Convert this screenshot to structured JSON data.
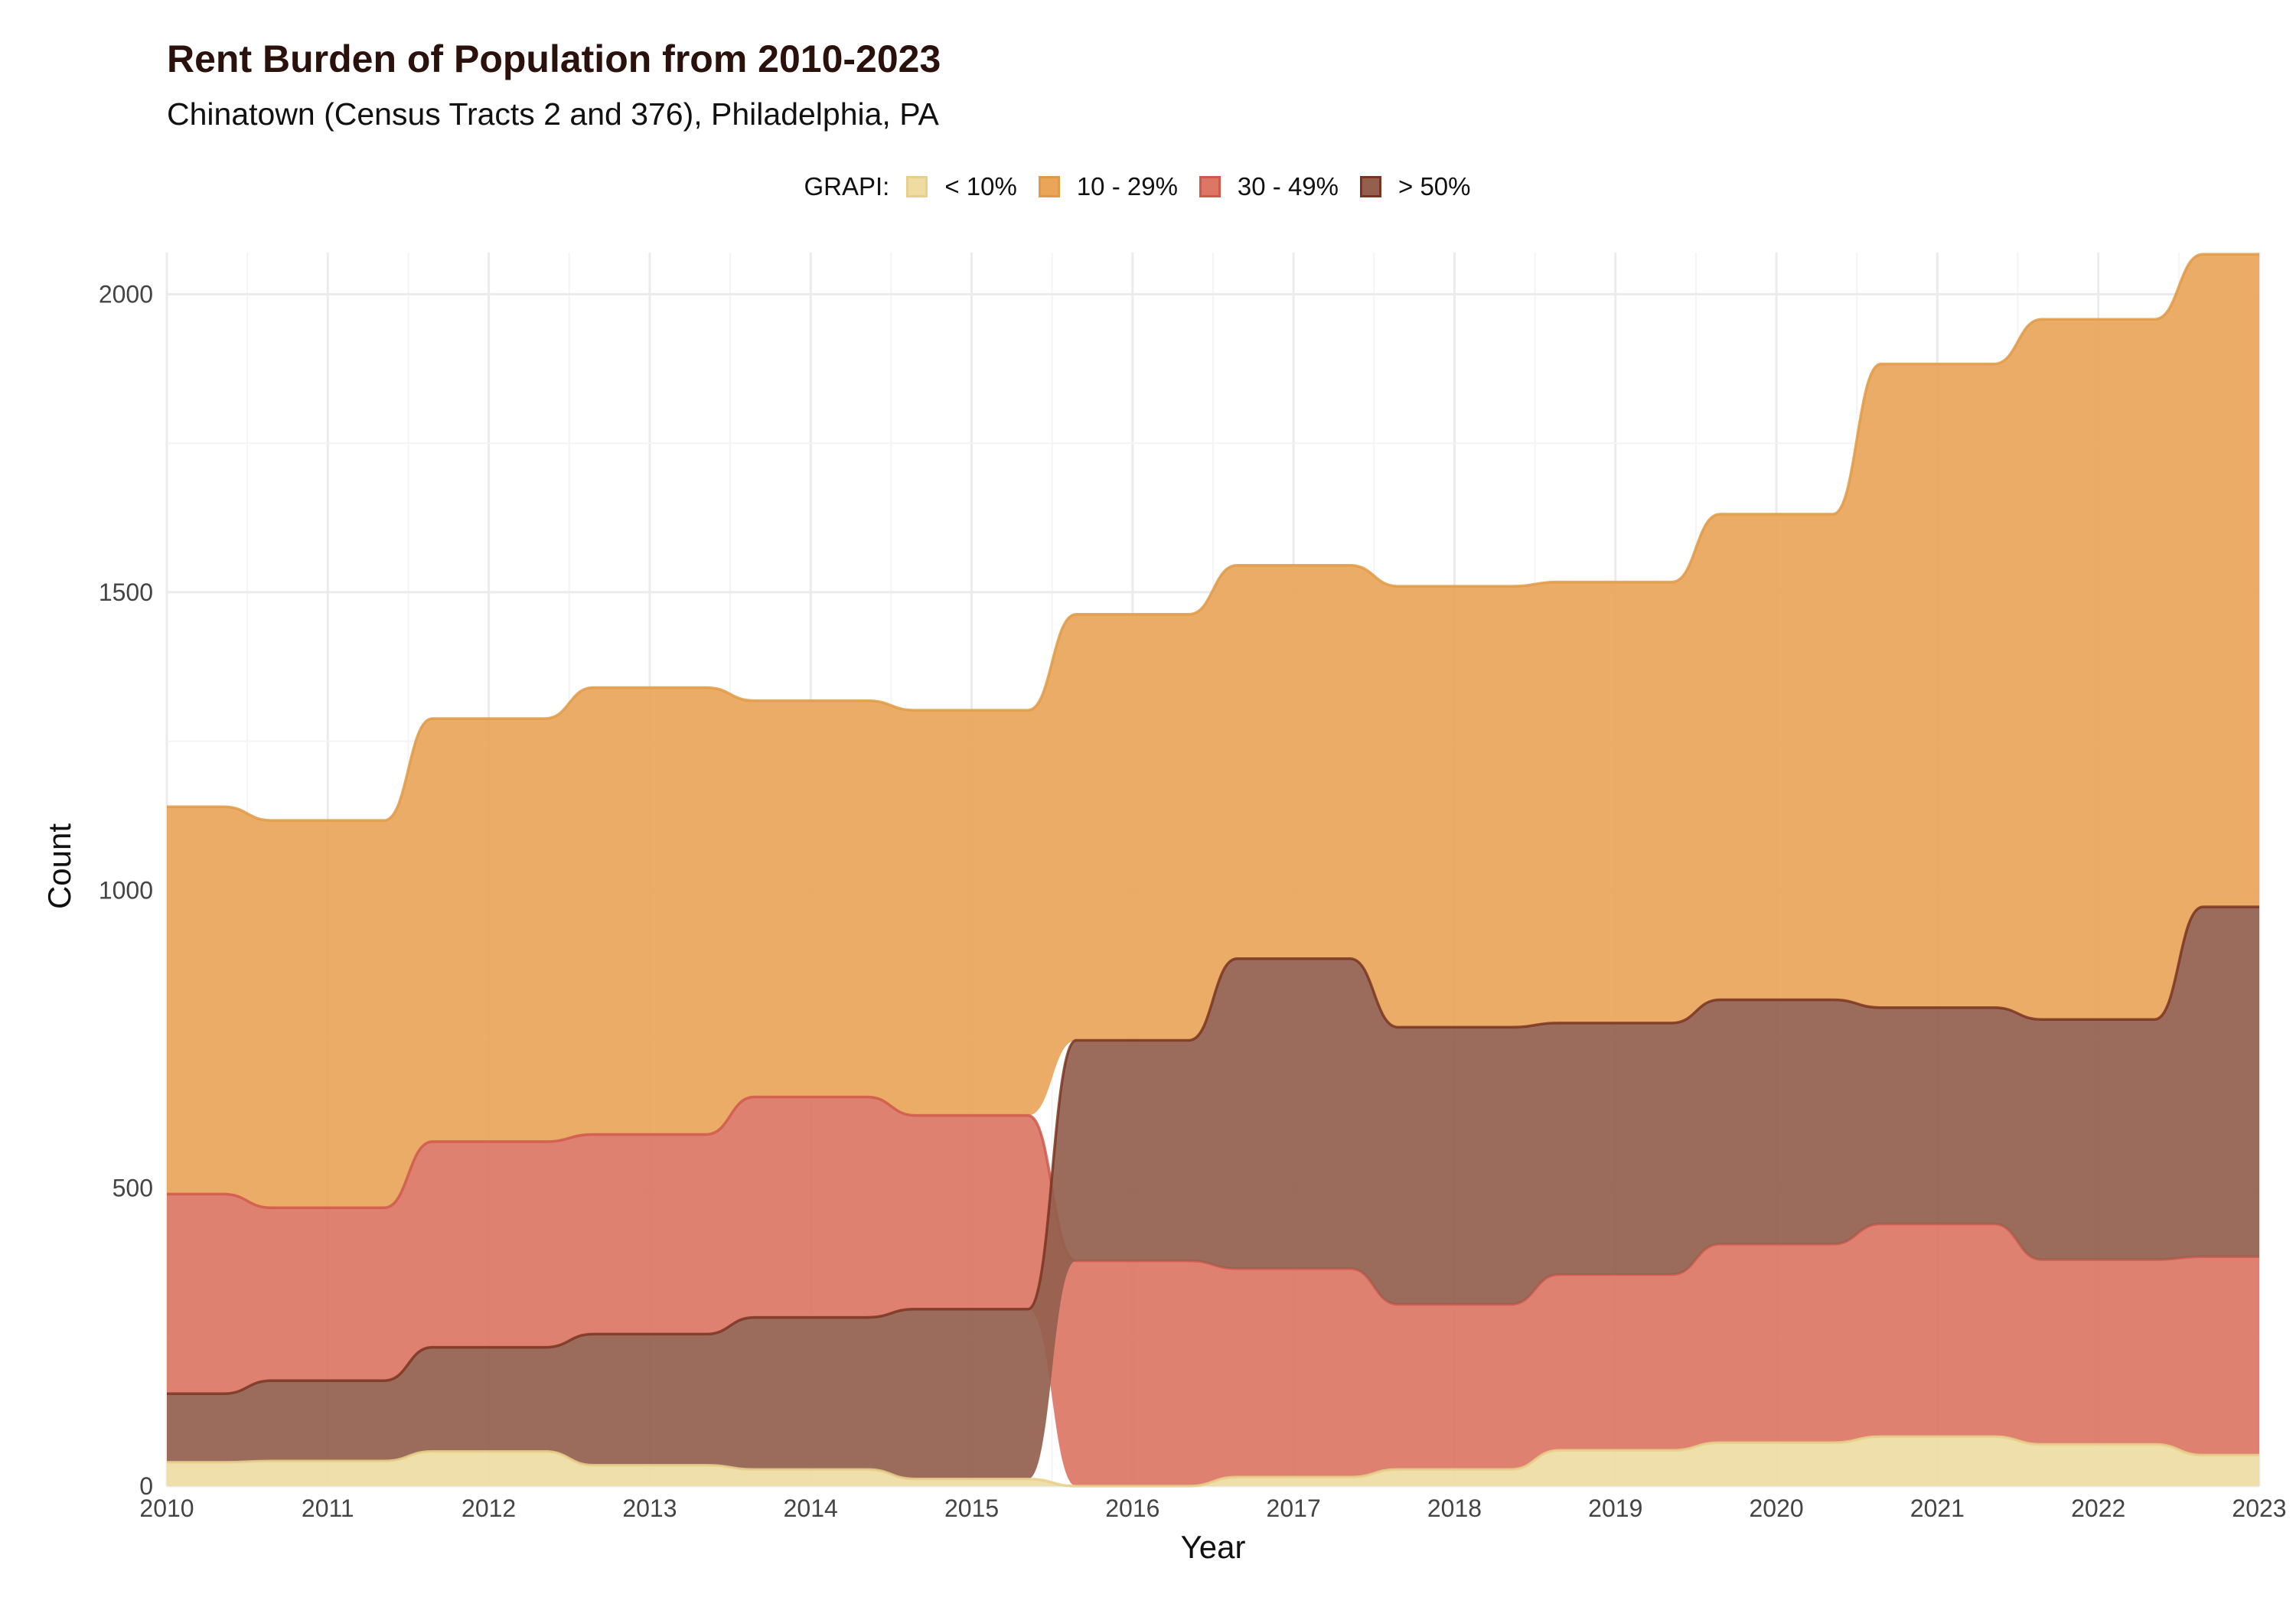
{
  "chart_data": {
    "type": "area",
    "title": "Rent Burden of Population from 2010-2023",
    "subtitle": "Chinatown (Census Tracts 2 and 376), Philadelphia, PA",
    "xlabel": "Year",
    "ylabel": "Count",
    "x": [
      2010,
      2011,
      2012,
      2013,
      2014,
      2015,
      2016,
      2017,
      2018,
      2019,
      2020,
      2021,
      2022,
      2023
    ],
    "xlim": [
      2010,
      2023
    ],
    "ylim": [
      0,
      2070
    ],
    "yticks": [
      0,
      500,
      1000,
      1500,
      2000
    ],
    "grid": true,
    "legend_title": "GRAPI:",
    "legend_position": "top",
    "series": [
      {
        "name": "< 10%",
        "color": "#eedca3",
        "line": "#e8cf8a",
        "values": [
          40,
          42,
          58,
          35,
          28,
          12,
          0,
          15,
          28,
          60,
          73,
          83,
          70,
          52
        ]
      },
      {
        "name": "10 - 29%",
        "color": "#e9a55a",
        "line": "#e09a46",
        "values": [
          650,
          650,
          710,
          750,
          665,
          680,
          715,
          660,
          740,
          740,
          815,
          1080,
          1175,
          1095
        ]
      },
      {
        "name": "30 - 49%",
        "color": "#dc7665",
        "line": "#d0594b",
        "values": [
          335,
          290,
          345,
          335,
          370,
          325,
          378,
          350,
          277,
          295,
          333,
          357,
          310,
          333
        ]
      },
      {
        "name": "> 50%",
        "color": "#93604e",
        "line": "#7a3521",
        "values": [
          115,
          135,
          175,
          220,
          255,
          285,
          370,
          520,
          465,
          422,
          410,
          363,
          403,
          587
        ]
      }
    ],
    "stack_order_bottom_to_top": [
      "< 10%",
      "> 50%",
      "30 - 49%",
      "10 - 29%"
    ],
    "stack_order_bottom_to_top_from_2016": [
      "< 10%",
      "30 - 49%",
      "> 50%",
      "10 - 29%"
    ]
  }
}
